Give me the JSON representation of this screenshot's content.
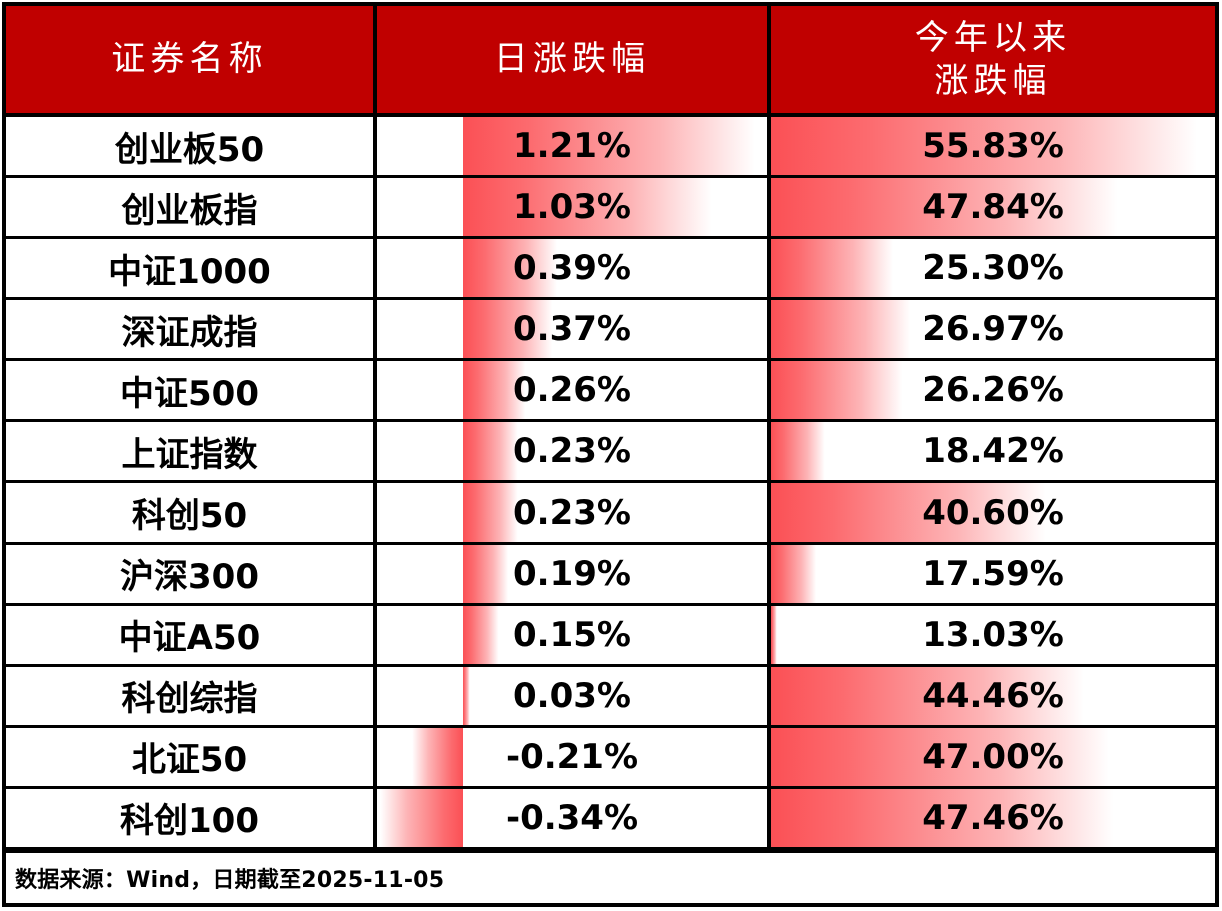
{
  "table": {
    "header": {
      "col_security_name": "证券名称",
      "col_daily_change": "日涨跌幅",
      "col_ytd_change_line1": "今年以来",
      "col_ytd_change_line2": "涨跌幅"
    },
    "rows": [
      {
        "name": "创业板50",
        "daily_label": "1.21%",
        "daily": 1.21,
        "ytd_label": "55.83%",
        "ytd": 55.83
      },
      {
        "name": "创业板指",
        "daily_label": "1.03%",
        "daily": 1.03,
        "ytd_label": "47.84%",
        "ytd": 47.84
      },
      {
        "name": "中证1000",
        "daily_label": "0.39%",
        "daily": 0.39,
        "ytd_label": "25.30%",
        "ytd": 25.3
      },
      {
        "name": "深证成指",
        "daily_label": "0.37%",
        "daily": 0.37,
        "ytd_label": "26.97%",
        "ytd": 26.97
      },
      {
        "name": "中证500",
        "daily_label": "0.26%",
        "daily": 0.26,
        "ytd_label": "26.26%",
        "ytd": 26.26
      },
      {
        "name": "上证指数",
        "daily_label": "0.23%",
        "daily": 0.23,
        "ytd_label": "18.42%",
        "ytd": 18.42
      },
      {
        "name": "科创50",
        "daily_label": "0.23%",
        "daily": 0.23,
        "ytd_label": "40.60%",
        "ytd": 40.6
      },
      {
        "name": "沪深300",
        "daily_label": "0.19%",
        "daily": 0.19,
        "ytd_label": "17.59%",
        "ytd": 17.59
      },
      {
        "name": "中证A50",
        "daily_label": "0.15%",
        "daily": 0.15,
        "ytd_label": "13.03%",
        "ytd": 13.03
      },
      {
        "name": "科创综指",
        "daily_label": "0.03%",
        "daily": 0.03,
        "ytd_label": "44.46%",
        "ytd": 44.46
      },
      {
        "name": "北证50",
        "daily_label": "-0.21%",
        "daily": -0.21,
        "ytd_label": "47.00%",
        "ytd": 47.0
      },
      {
        "name": "科创100",
        "daily_label": "-0.34%",
        "daily": -0.34,
        "ytd_label": "47.46%",
        "ytd": 47.46
      }
    ],
    "footer_note": "数据来源：Wind，日期截至2025-11-05"
  },
  "chart_data": {
    "type": "table",
    "title": "",
    "categories": [
      "创业板50",
      "创业板指",
      "中证1000",
      "深证成指",
      "中证500",
      "上证指数",
      "科创50",
      "沪深300",
      "中证A50",
      "科创综指",
      "北证50",
      "科创100"
    ],
    "series": [
      {
        "name": "日涨跌幅(%)",
        "values": [
          1.21,
          1.03,
          0.39,
          0.37,
          0.26,
          0.23,
          0.23,
          0.19,
          0.15,
          0.03,
          -0.21,
          -0.34
        ]
      },
      {
        "name": "今年以来涨跌幅(%)",
        "values": [
          55.83,
          47.84,
          25.3,
          26.97,
          26.26,
          18.42,
          40.6,
          17.59,
          13.03,
          44.46,
          47.0,
          47.46
        ]
      }
    ],
    "databar_axes": {
      "daily": {
        "min": -0.34,
        "max": 1.21
      },
      "ytd": {
        "min": 13.03,
        "max": 55.83
      }
    },
    "legend_position": "none",
    "grid": false
  },
  "colors": {
    "header_bg": "#C00000",
    "header_text": "#FFFFFF",
    "bar_red": "#FB5055",
    "border": "#000000",
    "body_text": "#000000"
  }
}
